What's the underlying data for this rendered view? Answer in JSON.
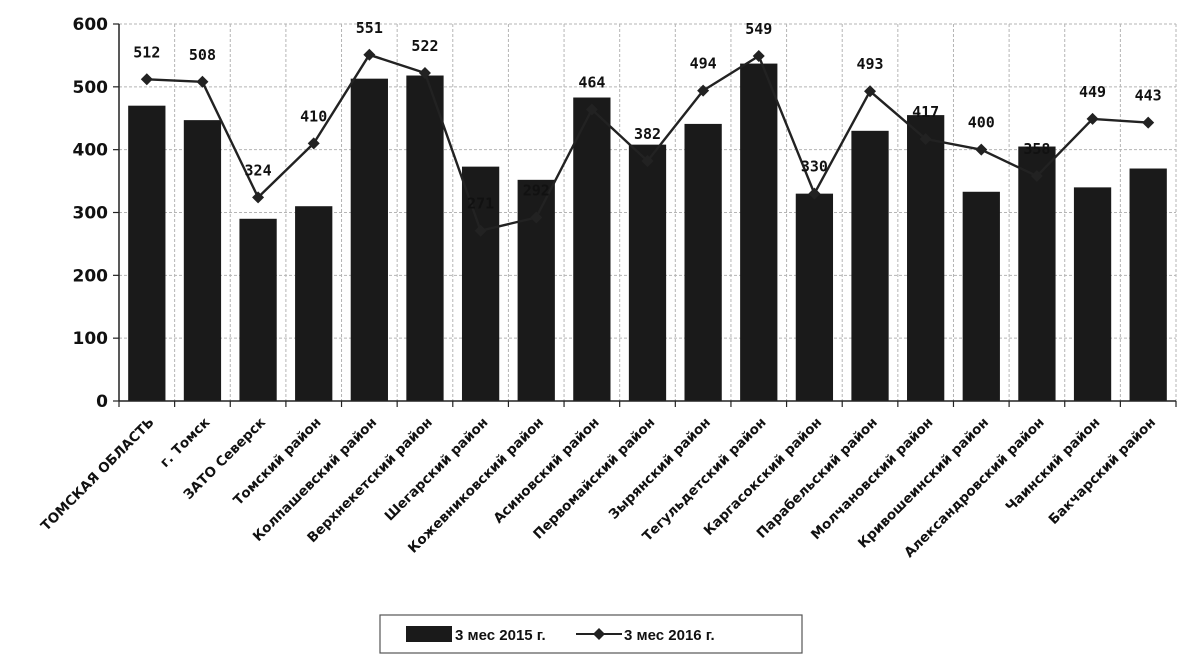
{
  "chart_data": {
    "type": "bar",
    "categories": [
      "ТОМСКАЯ ОБЛАСТЬ",
      "г. Томск",
      "ЗАТО Северск",
      "Томский район",
      "Колпашевский район",
      "Верхнекетский район",
      "Шегарский район",
      "Кожевниковский район",
      "Асиновский район",
      "Первомайский район",
      "Зырянский район",
      "Тегульдетский район",
      "Каргасокский район",
      "Парабельский район",
      "Молчановский район",
      "Кривошеинский район",
      "Александровский район",
      "Чаинский район",
      "Бакчарский район"
    ],
    "series": [
      {
        "name": "3 мес 2015 г.",
        "kind": "bar",
        "color": "#1a1a1a",
        "values": [
          470,
          447,
          290,
          310,
          513,
          518,
          373,
          352,
          483,
          408,
          441,
          537,
          330,
          430,
          455,
          333,
          405,
          340,
          370
        ]
      },
      {
        "name": "3 мес 2016 г.",
        "kind": "line",
        "color": "#222222",
        "values": [
          512,
          508,
          324,
          410,
          551,
          522,
          271,
          292,
          464,
          382,
          494,
          549,
          330,
          493,
          417,
          400,
          358,
          449,
          443
        ],
        "labels": [
          "512",
          "508",
          "324",
          "410",
          "551",
          "522",
          "271",
          "292",
          "464",
          "382",
          "494",
          "549",
          "330",
          "493",
          "417",
          "400",
          "358",
          "449",
          "443"
        ]
      }
    ],
    "ylim": [
      0,
      600
    ],
    "yticks": [
      "0",
      "100",
      "200",
      "300",
      "400",
      "500",
      "600"
    ],
    "grid": true,
    "legend": "bottom"
  }
}
